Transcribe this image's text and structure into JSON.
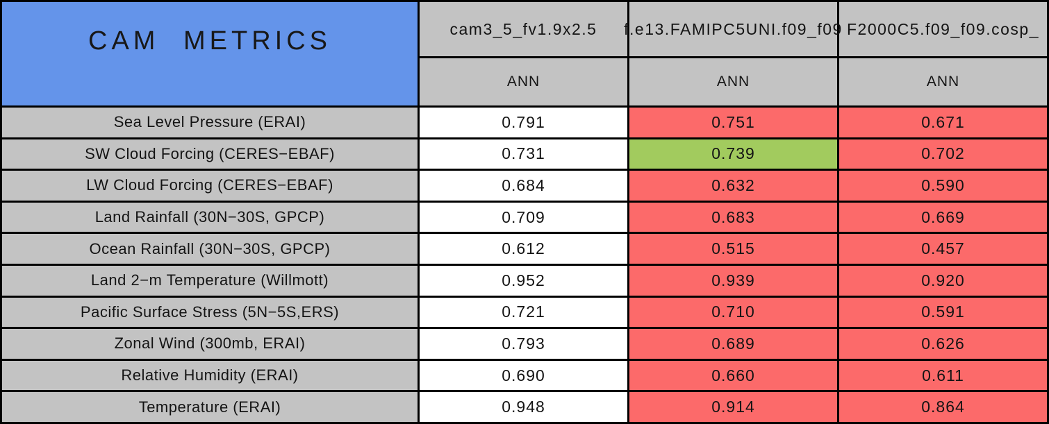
{
  "title": "CAM METRICS",
  "columns": [
    {
      "name": "cam3_5_fv1.9x2.5",
      "season": "ANN"
    },
    {
      "name": "f.e13.FAMIPC5UNI.f09_f09",
      "season": "ANN"
    },
    {
      "name": "F2000C5.f09_f09.cosp_",
      "season": "ANN"
    }
  ],
  "rows": [
    {
      "label": "Sea Level Pressure (ERAI)",
      "values": [
        "0.791",
        "0.751",
        "0.671"
      ],
      "colors": [
        "white",
        "red",
        "red"
      ]
    },
    {
      "label": "SW Cloud Forcing (CERES−EBAF)",
      "values": [
        "0.731",
        "0.739",
        "0.702"
      ],
      "colors": [
        "white",
        "green",
        "red"
      ]
    },
    {
      "label": "LW Cloud Forcing (CERES−EBAF)",
      "values": [
        "0.684",
        "0.632",
        "0.590"
      ],
      "colors": [
        "white",
        "red",
        "red"
      ]
    },
    {
      "label": "Land Rainfall (30N−30S, GPCP)",
      "values": [
        "0.709",
        "0.683",
        "0.669"
      ],
      "colors": [
        "white",
        "red",
        "red"
      ]
    },
    {
      "label": "Ocean Rainfall (30N−30S, GPCP)",
      "values": [
        "0.612",
        "0.515",
        "0.457"
      ],
      "colors": [
        "white",
        "red",
        "red"
      ]
    },
    {
      "label": "Land 2−m Temperature (Willmott)",
      "values": [
        "0.952",
        "0.939",
        "0.920"
      ],
      "colors": [
        "white",
        "red",
        "red"
      ]
    },
    {
      "label": "Pacific Surface Stress (5N−5S,ERS)",
      "values": [
        "0.721",
        "0.710",
        "0.591"
      ],
      "colors": [
        "white",
        "red",
        "red"
      ]
    },
    {
      "label": "Zonal Wind (300mb, ERAI)",
      "values": [
        "0.793",
        "0.689",
        "0.626"
      ],
      "colors": [
        "white",
        "red",
        "red"
      ]
    },
    {
      "label": "Relative Humidity (ERAI)",
      "values": [
        "0.690",
        "0.660",
        "0.611"
      ],
      "colors": [
        "white",
        "red",
        "red"
      ]
    },
    {
      "label": "Temperature (ERAI)",
      "values": [
        "0.948",
        "0.914",
        "0.864"
      ],
      "colors": [
        "white",
        "red",
        "red"
      ]
    }
  ],
  "palette": {
    "white": "#FFFFFF",
    "red": "#FC6A6A",
    "green": "#A2CB5E",
    "gray": "#C3C3C3",
    "blue": "#6494EA",
    "border": "#000000"
  },
  "chart_data": {
    "type": "table",
    "title": "CAM METRICS",
    "column_headers": [
      "cam3_5_fv1.9x2.5",
      "f.e13.FAMIPC5UNI.f09_f09",
      "F2000C5.f09_f09.cosp_"
    ],
    "season_row": [
      "ANN",
      "ANN",
      "ANN"
    ],
    "metrics": [
      "Sea Level Pressure (ERAI)",
      "SW Cloud Forcing (CERES−EBAF)",
      "LW Cloud Forcing (CERES−EBAF)",
      "Land Rainfall (30N−30S, GPCP)",
      "Ocean Rainfall (30N−30S, GPCP)",
      "Land 2−m Temperature (Willmott)",
      "Pacific Surface Stress (5N−5S,ERS)",
      "Zonal Wind (300mb, ERAI)",
      "Relative Humidity (ERAI)",
      "Temperature (ERAI)"
    ],
    "series": [
      {
        "name": "cam3_5_fv1.9x2.5",
        "values": [
          0.791,
          0.731,
          0.684,
          0.709,
          0.612,
          0.952,
          0.721,
          0.793,
          0.69,
          0.948
        ]
      },
      {
        "name": "f.e13.FAMIPC5UNI.f09_f09",
        "values": [
          0.751,
          0.739,
          0.632,
          0.683,
          0.515,
          0.939,
          0.71,
          0.689,
          0.66,
          0.914
        ]
      },
      {
        "name": "F2000C5.f09_f09.cosp_",
        "values": [
          0.671,
          0.702,
          0.59,
          0.669,
          0.457,
          0.92,
          0.591,
          0.626,
          0.611,
          0.864
        ]
      }
    ],
    "highlight_cells": [
      {
        "metric_index": 1,
        "series_index": 1,
        "value": 0.739,
        "color": "green"
      }
    ],
    "cell_color_meaning": {
      "white": "first (reference) column",
      "red": "red-shaded comparison cell",
      "green": "green-shaded comparison cell"
    }
  }
}
